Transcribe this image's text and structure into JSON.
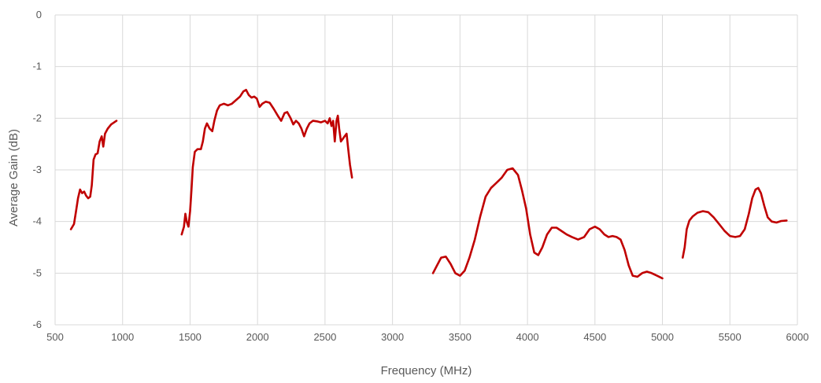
{
  "chart_data": {
    "type": "line",
    "title": "",
    "xlabel": "Frequency (MHz)",
    "ylabel": "Average Gain (dB)",
    "xlim": [
      500,
      6000
    ],
    "ylim": [
      -6,
      0
    ],
    "x_ticks": [
      500,
      1000,
      1500,
      2000,
      2500,
      3000,
      3500,
      4000,
      4500,
      5000,
      5500,
      6000
    ],
    "y_ticks": [
      0,
      -1,
      -2,
      -3,
      -4,
      -5,
      -6
    ],
    "grid": true,
    "legend": "none",
    "color": "#c00000",
    "segments": [
      {
        "points": [
          [
            617,
            -4.15
          ],
          [
            640,
            -4.05
          ],
          [
            655,
            -3.8
          ],
          [
            670,
            -3.55
          ],
          [
            685,
            -3.38
          ],
          [
            700,
            -3.45
          ],
          [
            715,
            -3.42
          ],
          [
            730,
            -3.5
          ],
          [
            745,
            -3.55
          ],
          [
            760,
            -3.52
          ],
          [
            772,
            -3.3
          ],
          [
            785,
            -2.8
          ],
          [
            800,
            -2.7
          ],
          [
            815,
            -2.68
          ],
          [
            830,
            -2.45
          ],
          [
            845,
            -2.35
          ],
          [
            857,
            -2.55
          ],
          [
            870,
            -2.3
          ],
          [
            890,
            -2.2
          ],
          [
            915,
            -2.12
          ],
          [
            955,
            -2.05
          ]
        ]
      },
      {
        "points": [
          [
            1438,
            -4.25
          ],
          [
            1455,
            -4.1
          ],
          [
            1465,
            -3.85
          ],
          [
            1475,
            -4.0
          ],
          [
            1488,
            -4.1
          ],
          [
            1500,
            -3.8
          ],
          [
            1510,
            -3.4
          ],
          [
            1520,
            -2.95
          ],
          [
            1535,
            -2.65
          ],
          [
            1555,
            -2.6
          ],
          [
            1580,
            -2.6
          ],
          [
            1595,
            -2.45
          ],
          [
            1610,
            -2.2
          ],
          [
            1625,
            -2.1
          ],
          [
            1645,
            -2.2
          ],
          [
            1665,
            -2.25
          ],
          [
            1680,
            -2.05
          ],
          [
            1700,
            -1.85
          ],
          [
            1720,
            -1.75
          ],
          [
            1750,
            -1.72
          ],
          [
            1780,
            -1.75
          ],
          [
            1810,
            -1.72
          ],
          [
            1840,
            -1.65
          ],
          [
            1870,
            -1.58
          ],
          [
            1895,
            -1.48
          ],
          [
            1915,
            -1.45
          ],
          [
            1935,
            -1.55
          ],
          [
            1955,
            -1.6
          ],
          [
            1975,
            -1.58
          ],
          [
            1995,
            -1.62
          ],
          [
            2015,
            -1.78
          ],
          [
            2035,
            -1.72
          ],
          [
            2060,
            -1.68
          ],
          [
            2090,
            -1.7
          ],
          [
            2120,
            -1.82
          ],
          [
            2150,
            -1.95
          ],
          [
            2175,
            -2.05
          ],
          [
            2200,
            -1.9
          ],
          [
            2220,
            -1.88
          ],
          [
            2245,
            -2.0
          ],
          [
            2265,
            -2.12
          ],
          [
            2285,
            -2.05
          ],
          [
            2305,
            -2.1
          ],
          [
            2325,
            -2.2
          ],
          [
            2345,
            -2.35
          ],
          [
            2365,
            -2.2
          ],
          [
            2385,
            -2.1
          ],
          [
            2410,
            -2.05
          ],
          [
            2440,
            -2.06
          ],
          [
            2470,
            -2.08
          ],
          [
            2500,
            -2.05
          ],
          [
            2520,
            -2.1
          ],
          [
            2535,
            -2.0
          ],
          [
            2548,
            -2.15
          ],
          [
            2560,
            -2.05
          ],
          [
            2572,
            -2.45
          ],
          [
            2585,
            -2.05
          ],
          [
            2595,
            -1.95
          ],
          [
            2605,
            -2.2
          ],
          [
            2618,
            -2.45
          ],
          [
            2632,
            -2.4
          ],
          [
            2645,
            -2.35
          ],
          [
            2660,
            -2.3
          ],
          [
            2672,
            -2.6
          ],
          [
            2685,
            -2.9
          ],
          [
            2700,
            -3.15
          ]
        ]
      },
      {
        "points": [
          [
            3300,
            -5.0
          ],
          [
            3330,
            -4.85
          ],
          [
            3360,
            -4.7
          ],
          [
            3395,
            -4.68
          ],
          [
            3430,
            -4.82
          ],
          [
            3465,
            -5.0
          ],
          [
            3500,
            -5.05
          ],
          [
            3535,
            -4.95
          ],
          [
            3570,
            -4.7
          ],
          [
            3610,
            -4.35
          ],
          [
            3650,
            -3.9
          ],
          [
            3690,
            -3.52
          ],
          [
            3730,
            -3.35
          ],
          [
            3770,
            -3.25
          ],
          [
            3810,
            -3.15
          ],
          [
            3850,
            -3.0
          ],
          [
            3890,
            -2.97
          ],
          [
            3930,
            -3.1
          ],
          [
            3960,
            -3.4
          ],
          [
            3990,
            -3.75
          ],
          [
            4020,
            -4.25
          ],
          [
            4050,
            -4.6
          ],
          [
            4080,
            -4.65
          ],
          [
            4110,
            -4.5
          ],
          [
            4145,
            -4.25
          ],
          [
            4180,
            -4.12
          ],
          [
            4215,
            -4.12
          ],
          [
            4250,
            -4.18
          ],
          [
            4290,
            -4.25
          ],
          [
            4330,
            -4.3
          ],
          [
            4375,
            -4.35
          ],
          [
            4420,
            -4.3
          ],
          [
            4460,
            -4.15
          ],
          [
            4500,
            -4.1
          ],
          [
            4535,
            -4.15
          ],
          [
            4570,
            -4.25
          ],
          [
            4600,
            -4.3
          ],
          [
            4630,
            -4.28
          ],
          [
            4660,
            -4.3
          ],
          [
            4690,
            -4.35
          ],
          [
            4720,
            -4.55
          ],
          [
            4750,
            -4.85
          ],
          [
            4780,
            -5.05
          ],
          [
            4815,
            -5.07
          ],
          [
            4850,
            -5.0
          ],
          [
            4885,
            -4.97
          ],
          [
            4920,
            -5.0
          ],
          [
            4960,
            -5.05
          ],
          [
            5000,
            -5.1
          ]
        ]
      },
      {
        "points": [
          [
            5150,
            -4.7
          ],
          [
            5165,
            -4.5
          ],
          [
            5180,
            -4.15
          ],
          [
            5200,
            -3.98
          ],
          [
            5225,
            -3.9
          ],
          [
            5260,
            -3.83
          ],
          [
            5300,
            -3.8
          ],
          [
            5340,
            -3.82
          ],
          [
            5380,
            -3.92
          ],
          [
            5420,
            -4.05
          ],
          [
            5460,
            -4.18
          ],
          [
            5500,
            -4.28
          ],
          [
            5540,
            -4.3
          ],
          [
            5575,
            -4.28
          ],
          [
            5610,
            -4.15
          ],
          [
            5640,
            -3.85
          ],
          [
            5665,
            -3.55
          ],
          [
            5690,
            -3.38
          ],
          [
            5710,
            -3.35
          ],
          [
            5730,
            -3.45
          ],
          [
            5755,
            -3.7
          ],
          [
            5780,
            -3.92
          ],
          [
            5810,
            -4.0
          ],
          [
            5845,
            -4.02
          ],
          [
            5880,
            -3.99
          ],
          [
            5920,
            -3.98
          ]
        ]
      }
    ]
  }
}
